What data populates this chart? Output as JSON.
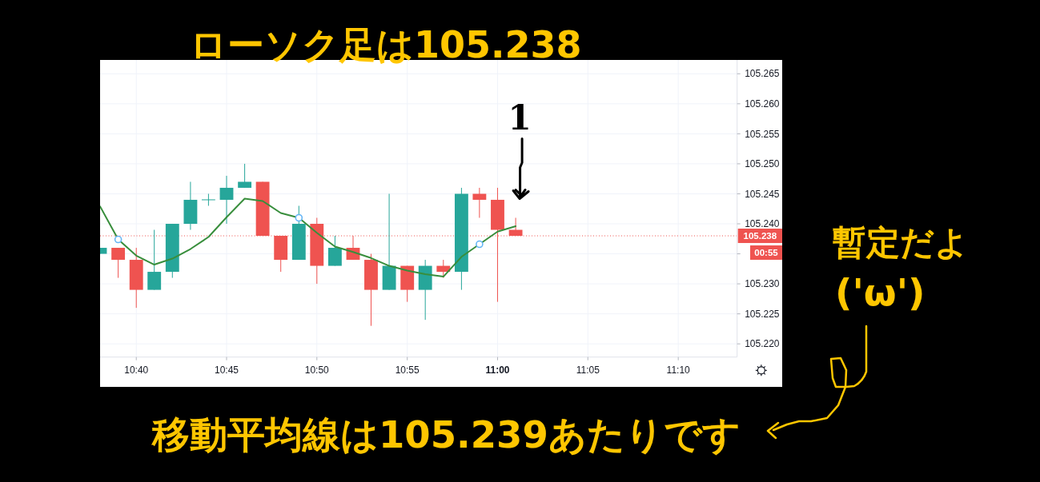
{
  "chart_data": {
    "type": "candlestick",
    "title": "ローソク足は105.238",
    "x": [
      10.6333,
      10.65,
      10.6667,
      10.6833,
      10.7,
      10.7167,
      10.7333,
      10.75,
      10.7667,
      10.7833,
      10.8,
      10.8167,
      10.8333,
      10.85,
      10.8667,
      10.8833,
      10.9,
      10.9167,
      10.9333,
      10.95,
      10.9667,
      10.9833,
      11,
      11.0167
    ],
    "ohlc": [
      [
        105.235,
        105.236,
        105.235,
        105.236
      ],
      [
        105.236,
        105.236,
        105.231,
        105.234
      ],
      [
        105.234,
        105.236,
        105.226,
        105.229
      ],
      [
        105.229,
        105.239,
        105.229,
        105.232
      ],
      [
        105.232,
        105.24,
        105.231,
        105.24
      ],
      [
        105.24,
        105.247,
        105.239,
        105.244
      ],
      [
        105.244,
        105.245,
        105.243,
        105.244
      ],
      [
        105.244,
        105.248,
        105.24,
        105.246
      ],
      [
        105.246,
        105.25,
        105.246,
        105.247
      ],
      [
        105.247,
        105.247,
        105.238,
        105.238
      ],
      [
        105.238,
        105.238,
        105.232,
        105.234
      ],
      [
        105.234,
        105.243,
        105.234,
        105.24
      ],
      [
        105.24,
        105.241,
        105.23,
        105.233
      ],
      [
        105.233,
        105.238,
        105.233,
        105.236
      ],
      [
        105.236,
        105.238,
        105.234,
        105.234
      ],
      [
        105.234,
        105.235,
        105.223,
        105.229
      ],
      [
        105.229,
        105.245,
        105.229,
        105.233
      ],
      [
        105.233,
        105.233,
        105.227,
        105.229
      ],
      [
        105.229,
        105.234,
        105.224,
        105.233
      ],
      [
        105.233,
        105.234,
        105.231,
        105.232
      ],
      [
        105.232,
        105.246,
        105.229,
        105.245
      ],
      [
        105.245,
        105.246,
        105.241,
        105.244
      ],
      [
        105.244,
        105.246,
        105.227,
        105.239
      ],
      [
        105.239,
        105.241,
        105.238,
        105.238
      ]
    ],
    "colors": [
      "#26a69a",
      "#ef5350",
      "#ef5350",
      "#26a69a",
      "#26a69a",
      "#26a69a",
      "#26a69a",
      "#26a69a",
      "#26a69a",
      "#ef5350",
      "#ef5350",
      "#26a69a",
      "#ef5350",
      "#26a69a",
      "#ef5350",
      "#ef5350",
      "#26a69a",
      "#ef5350",
      "#26a69a",
      "#ef5350",
      "#26a69a",
      "#ef5350",
      "#ef5350",
      "#ef5350"
    ],
    "series": [
      {
        "type": "line",
        "color": "#388e3c",
        "x": [
          10.6333,
          10.65,
          10.6667,
          10.6833,
          10.7,
          10.7167,
          10.7333,
          10.75,
          10.7667,
          10.7833,
          10.8,
          10.8167,
          10.8333,
          10.85,
          10.8667,
          10.8833,
          10.9,
          10.9167,
          10.9333,
          10.95,
          10.9667,
          10.9833,
          11,
          11.0167
        ],
        "values": [
          105.2429,
          105.2374,
          105.2347,
          105.2332,
          105.2342,
          105.2358,
          105.2378,
          105.2411,
          105.2442,
          105.2438,
          105.2418,
          105.241,
          105.2385,
          105.2362,
          105.2353,
          105.2343,
          105.233,
          105.2322,
          105.2316,
          105.2312,
          105.2345,
          105.2366,
          105.2387,
          105.2396
        ]
      },
      {
        "type": "scatter",
        "color": "#64b5f6",
        "marker": "circle",
        "x": [
          10.65,
          10.8167,
          10.9833
        ],
        "values": [
          105.2374,
          105.241,
          105.2366
        ]
      }
    ],
    "xlim": [
      10.6333,
      11.221
    ],
    "ylim": [
      105.2178,
      105.2673
    ],
    "xticks": [
      {
        "value": 10.6667,
        "label": "10:40"
      },
      {
        "value": 10.75,
        "label": "10:45"
      },
      {
        "value": 10.8333,
        "label": "10:50"
      },
      {
        "value": 10.9167,
        "label": "10:55"
      },
      {
        "value": 11,
        "label": "11:00"
      },
      {
        "value": 11.0833,
        "label": "11:05"
      },
      {
        "value": 11.1667,
        "label": "11:10"
      }
    ],
    "yticks": [
      {
        "value": 105.22,
        "label": "105.220"
      },
      {
        "value": 105.225,
        "label": "105.225"
      },
      {
        "value": 105.23,
        "label": "105.230"
      },
      {
        "value": 105.235,
        "label": null
      },
      {
        "value": 105.24,
        "label": "105.240"
      },
      {
        "value": 105.245,
        "label": "105.245"
      },
      {
        "value": 105.25,
        "label": "105.250"
      },
      {
        "value": 105.255,
        "label": "105.255"
      },
      {
        "value": 105.26,
        "label": "105.260"
      },
      {
        "value": 105.265,
        "label": "105.265"
      }
    ],
    "grid": true,
    "ref_lines": [
      {
        "axis": "y",
        "value": 105.238,
        "label": "105.238",
        "color": "#ef5350",
        "line_style": "dotted"
      }
    ],
    "annotations": [
      {
        "text": "1",
        "x": 11.0167,
        "y": 105.241
      },
      "暫定だよ",
      "('ω')",
      "移動平均線は105.239あたりです",
      "00:55"
    ]
  }
}
